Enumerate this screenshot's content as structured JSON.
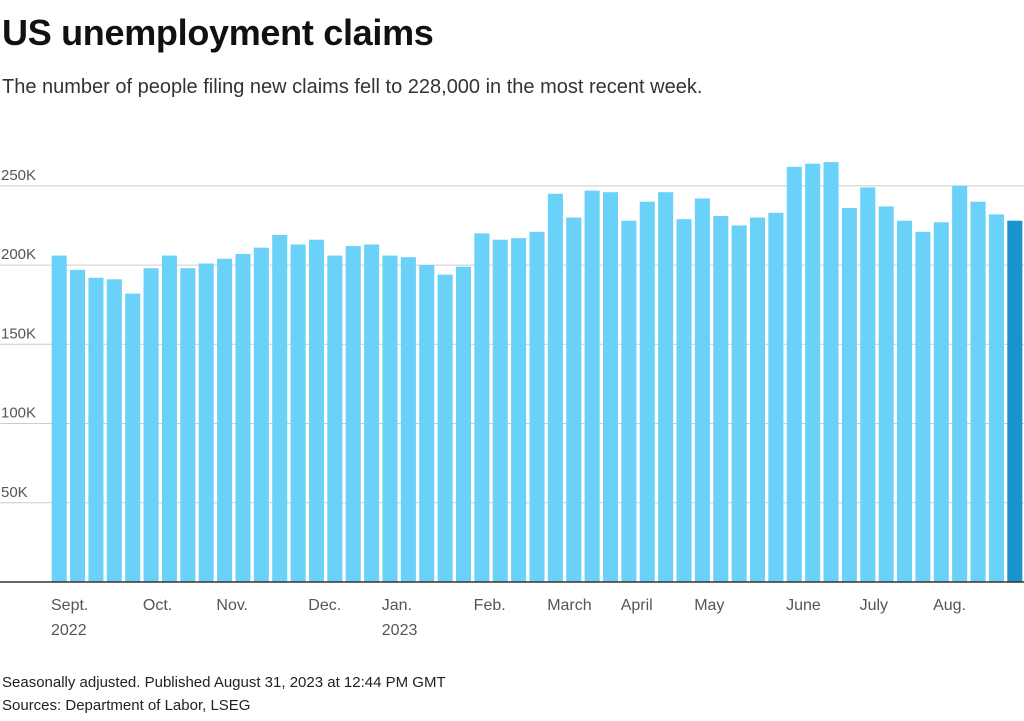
{
  "title": "US unemployment claims",
  "subtitle": "The number of people filing new claims fell to 228,000 in the most recent week.",
  "footnote": "Seasonally adjusted. Published August 31, 2023 at 12:44 PM GMT",
  "sources": "Sources: Department of Labor, LSEG",
  "colors": {
    "bar": "#6ad2f8",
    "highlight": "#1b93cc",
    "grid": "#cccccc",
    "axis": "#333333"
  },
  "chart_data": {
    "type": "bar",
    "ylim": [
      0,
      260000
    ],
    "yticks": [
      {
        "value": 50000,
        "label": "50K"
      },
      {
        "value": 100000,
        "label": "100K"
      },
      {
        "value": 150000,
        "label": "150K"
      },
      {
        "value": 200000,
        "label": "200K"
      },
      {
        "value": 250000,
        "label": "250K"
      }
    ],
    "grid": true,
    "xticks": [
      {
        "index": 0,
        "label": "Sept.",
        "year": "2022"
      },
      {
        "index": 5,
        "label": "Oct."
      },
      {
        "index": 9,
        "label": "Nov."
      },
      {
        "index": 14,
        "label": "Dec."
      },
      {
        "index": 18,
        "label": "Jan.",
        "year": "2023"
      },
      {
        "index": 23,
        "label": "Feb."
      },
      {
        "index": 27,
        "label": "March"
      },
      {
        "index": 31,
        "label": "April"
      },
      {
        "index": 35,
        "label": "May"
      },
      {
        "index": 40,
        "label": "June"
      },
      {
        "index": 44,
        "label": "July"
      },
      {
        "index": 48,
        "label": "Aug."
      }
    ],
    "values": [
      206000,
      197000,
      192000,
      191000,
      182000,
      198000,
      206000,
      198000,
      201000,
      204000,
      207000,
      211000,
      219000,
      213000,
      216000,
      206000,
      212000,
      213000,
      206000,
      205000,
      200000,
      194000,
      199000,
      220000,
      216000,
      217000,
      221000,
      245000,
      230000,
      247000,
      246000,
      228000,
      240000,
      246000,
      229000,
      242000,
      231000,
      225000,
      230000,
      233000,
      262000,
      264000,
      265000,
      236000,
      249000,
      237000,
      228000,
      221000,
      227000,
      250000,
      240000,
      232000,
      228000
    ],
    "highlight_index": 52
  }
}
